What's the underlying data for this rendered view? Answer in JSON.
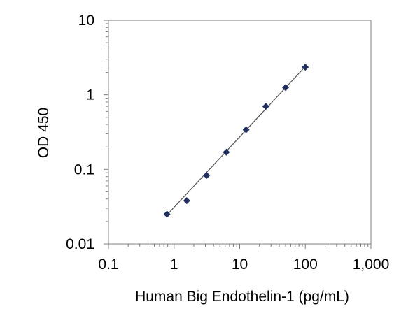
{
  "chart_data": {
    "type": "scatter",
    "title": "",
    "xlabel": "Human Big Endothelin-1 (pg/mL)",
    "ylabel": "OD 450",
    "x_scale": "log",
    "y_scale": "log",
    "xlim": [
      0.1,
      1000
    ],
    "ylim": [
      0.01,
      10
    ],
    "x_tick_values": [
      0.1,
      1,
      10,
      100,
      1000
    ],
    "x_tick_labels": [
      "0.1",
      "1",
      "10",
      "100",
      "1,000"
    ],
    "y_tick_values": [
      0.01,
      0.1,
      1,
      10
    ],
    "y_tick_labels": [
      "0.01",
      "0.1",
      "1",
      "10"
    ],
    "grid": false,
    "legend": "none",
    "series": [
      {
        "marker": "diamond",
        "color": "#1f2f5e",
        "x": [
          0.78,
          1.56,
          3.13,
          6.25,
          12.5,
          25,
          50,
          100
        ],
        "y": [
          0.025,
          0.038,
          0.083,
          0.17,
          0.34,
          0.7,
          1.25,
          2.35
        ]
      }
    ],
    "fit_line": {
      "color": "#555555",
      "x": [
        0.78,
        100
      ],
      "y": [
        0.0245,
        2.4
      ]
    }
  }
}
